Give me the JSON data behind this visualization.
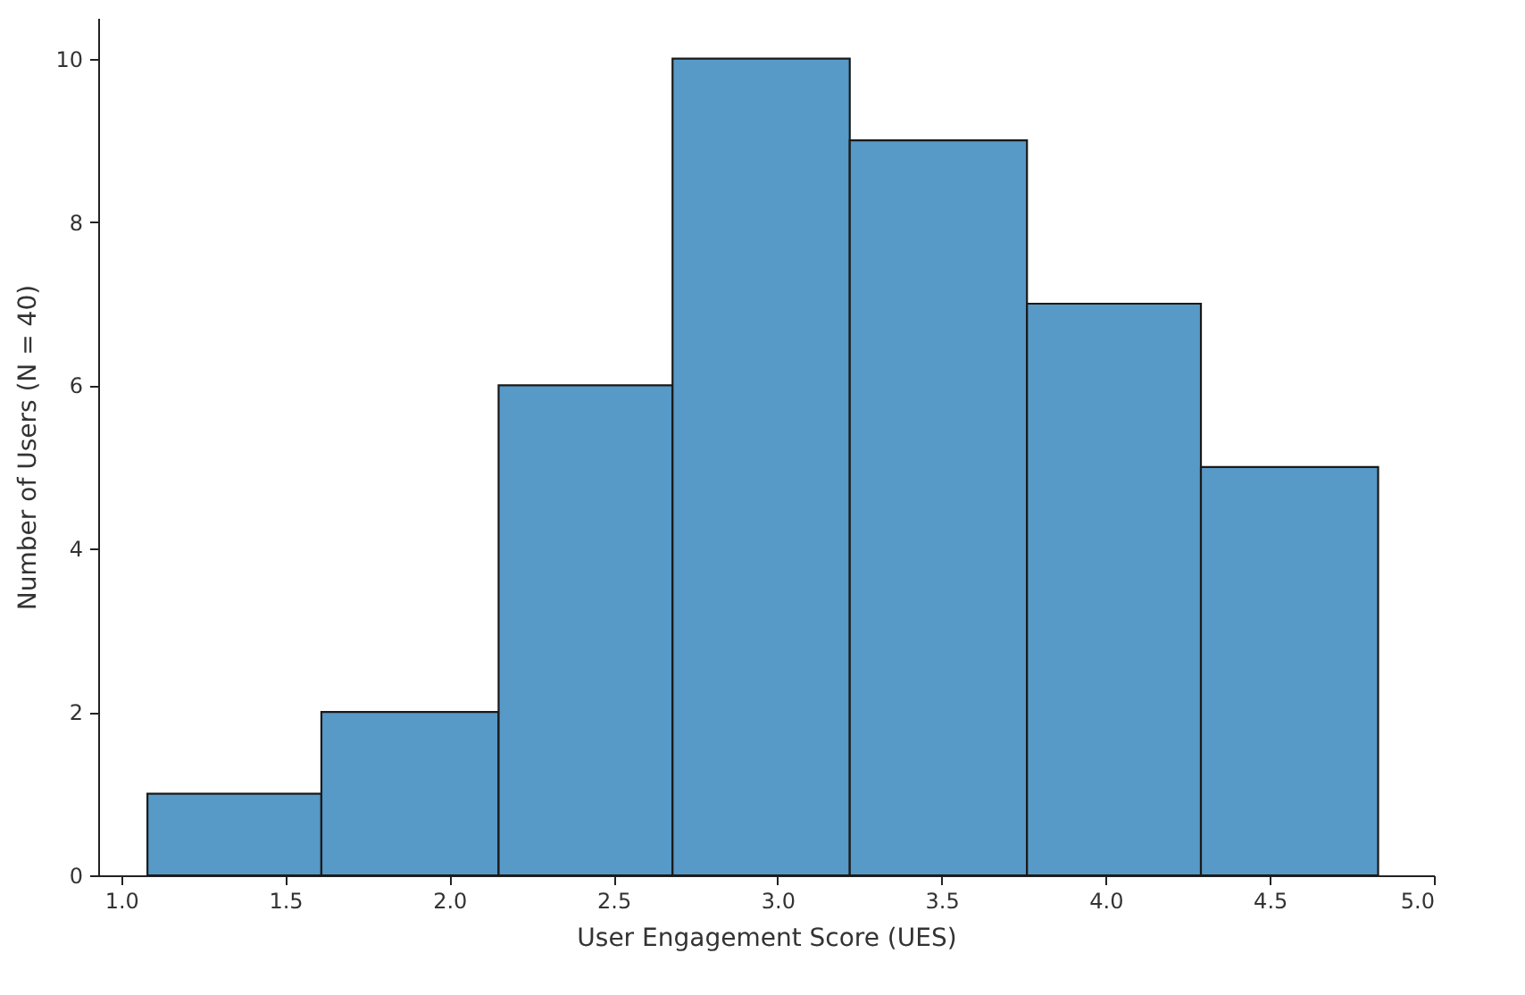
{
  "chart_data": {
    "type": "histogram",
    "xlabel": "User Engagement Score (UES)",
    "ylabel": "Number of Users (N = 40)",
    "bins": [
      1.08,
      1.61,
      2.15,
      2.68,
      3.22,
      3.76,
      4.29,
      4.83
    ],
    "values": [
      1,
      2,
      6,
      10,
      9,
      7,
      5
    ],
    "color": "#5799c7",
    "xlim": [
      0.93,
      5.0
    ],
    "xticks": [
      {
        "value": 1,
        "label": "1.0"
      },
      1.5,
      {
        "value": 2,
        "label": "2.0"
      },
      2.5,
      {
        "value": 3,
        "label": "3.0"
      },
      3.5,
      {
        "value": 4,
        "label": "4.0"
      },
      4.5,
      {
        "value": 5,
        "label": "5.0"
      }
    ],
    "ylim": [
      0,
      10.5
    ],
    "yticks": [
      0,
      2,
      4,
      6,
      8,
      10
    ],
    "grid": false
  }
}
